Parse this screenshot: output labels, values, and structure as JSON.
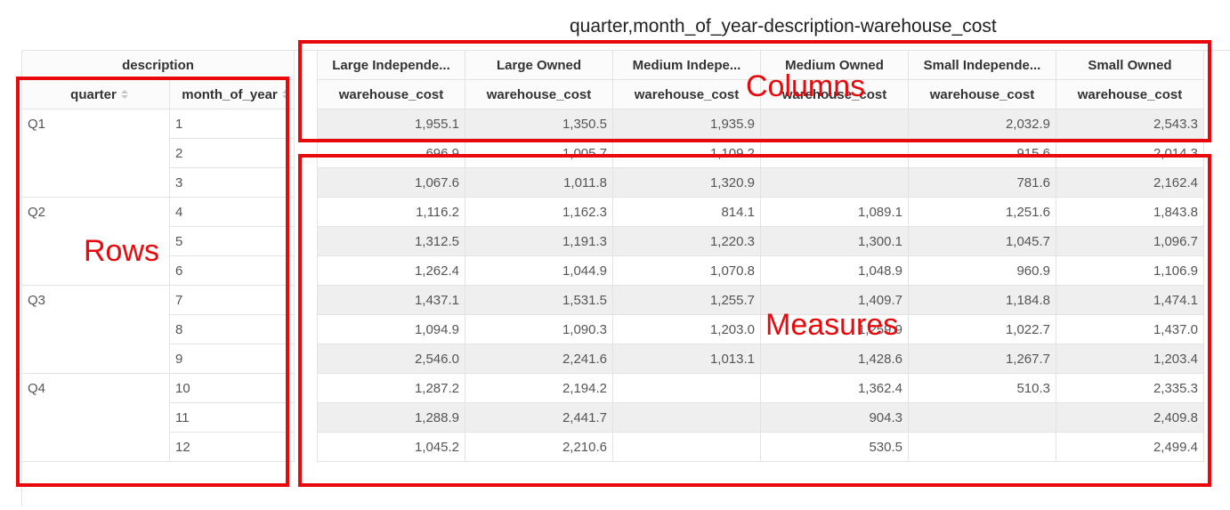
{
  "title": "quarter,month_of_year-description-warehouse_cost",
  "headers": {
    "column_dimension": "description",
    "row_dimensions": [
      "quarter",
      "month_of_year"
    ],
    "columns": [
      "Large Independe...",
      "Large Owned",
      "Medium Indepe...",
      "Medium Owned",
      "Small Independe...",
      "Small Owned"
    ],
    "measure": "warehouse_cost"
  },
  "rows": [
    {
      "quarter": "Q1",
      "month": "1",
      "values": [
        "1,955.1",
        "1,350.5",
        "1,935.9",
        "",
        "2,032.9",
        "2,543.3"
      ]
    },
    {
      "quarter": "",
      "month": "2",
      "values": [
        "696.9",
        "1,005.7",
        "1,109.2",
        "",
        "915.6",
        "2,014.3"
      ]
    },
    {
      "quarter": "",
      "month": "3",
      "values": [
        "1,067.6",
        "1,011.8",
        "1,320.9",
        "",
        "781.6",
        "2,162.4"
      ]
    },
    {
      "quarter": "Q2",
      "month": "4",
      "values": [
        "1,116.2",
        "1,162.3",
        "814.1",
        "1,089.1",
        "1,251.6",
        "1,843.8"
      ]
    },
    {
      "quarter": "",
      "month": "5",
      "values": [
        "1,312.5",
        "1,191.3",
        "1,220.3",
        "1,300.1",
        "1,045.7",
        "1,096.7"
      ]
    },
    {
      "quarter": "",
      "month": "6",
      "values": [
        "1,262.4",
        "1,044.9",
        "1,070.8",
        "1,048.9",
        "960.9",
        "1,106.9"
      ]
    },
    {
      "quarter": "Q3",
      "month": "7",
      "values": [
        "1,437.1",
        "1,531.5",
        "1,255.7",
        "1,409.7",
        "1,184.8",
        "1,474.1"
      ]
    },
    {
      "quarter": "",
      "month": "8",
      "values": [
        "1,094.9",
        "1,090.3",
        "1,203.0",
        "1,259.9",
        "1,022.7",
        "1,437.0"
      ]
    },
    {
      "quarter": "",
      "month": "9",
      "values": [
        "2,546.0",
        "2,241.6",
        "1,013.1",
        "1,428.6",
        "1,267.7",
        "1,203.4"
      ]
    },
    {
      "quarter": "Q4",
      "month": "10",
      "values": [
        "1,287.2",
        "2,194.2",
        "",
        "1,362.4",
        "510.3",
        "2,335.3"
      ]
    },
    {
      "quarter": "",
      "month": "11",
      "values": [
        "1,288.9",
        "2,441.7",
        "",
        "904.3",
        "",
        "2,409.8"
      ]
    },
    {
      "quarter": "",
      "month": "12",
      "values": [
        "1,045.2",
        "2,210.6",
        "",
        "530.5",
        "",
        "2,499.4"
      ]
    }
  ],
  "annotations": {
    "rows_label": "Rows",
    "columns_label": "Columns",
    "measures_label": "Measures",
    "color": "#e8090c"
  }
}
